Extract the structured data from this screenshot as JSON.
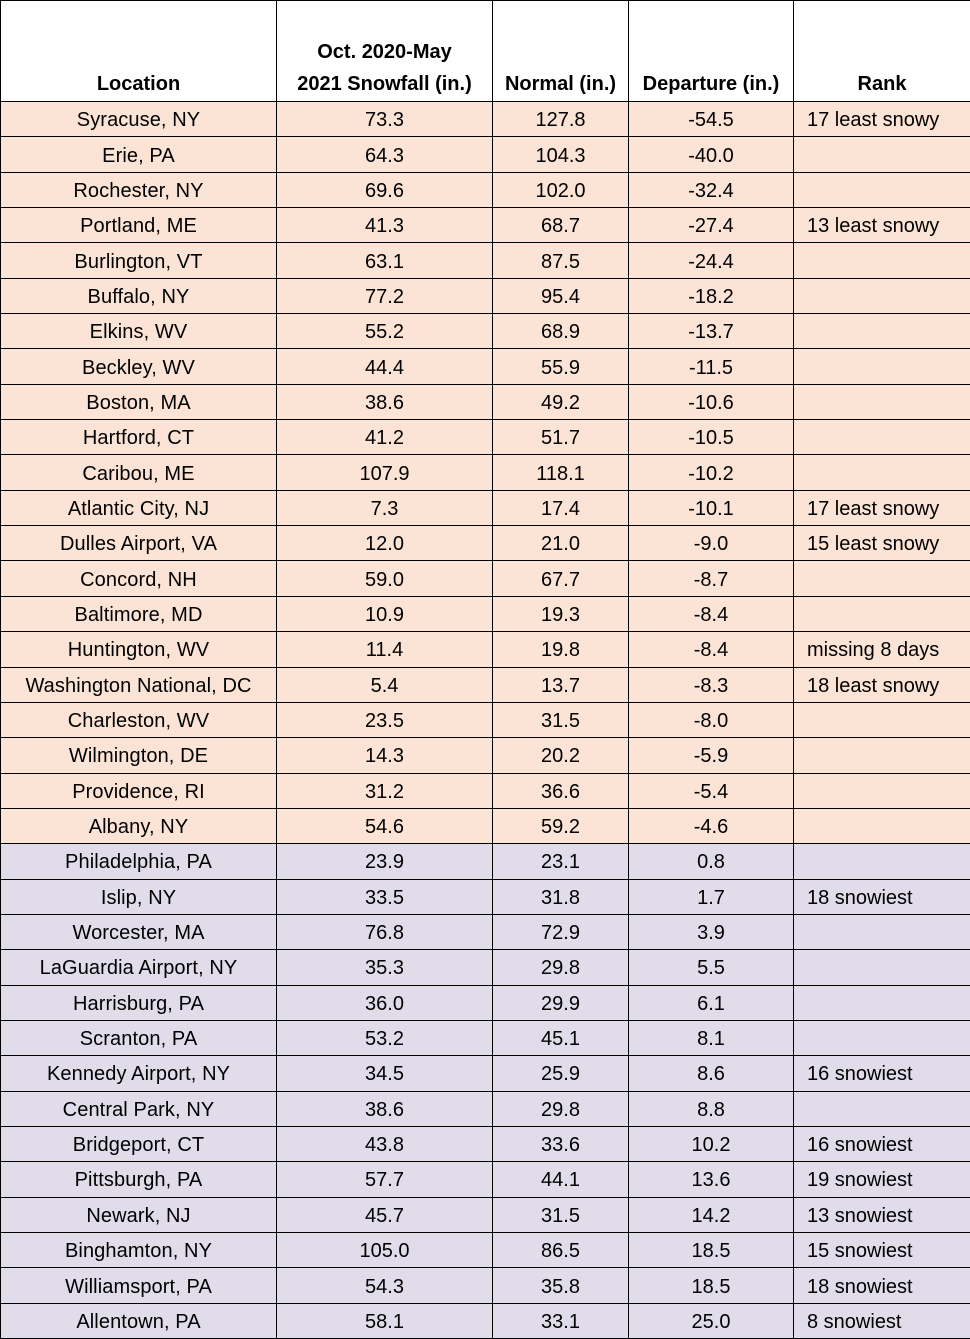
{
  "table": {
    "headers": {
      "location": "Location",
      "snowfall_line1": "Oct. 2020-May",
      "snowfall_line2": "2021 Snowfall (in.)",
      "normal": "Normal (in.)",
      "departure": "Departure (in.)",
      "rank": "Rank"
    },
    "row_colors": {
      "below_normal": "#fbe4d5",
      "above_normal": "#e0dcea"
    },
    "rows": [
      {
        "location": "Syracuse, NY",
        "snowfall": "73.3",
        "normal": "127.8",
        "departure": "-54.5",
        "rank": "17 least snowy",
        "group": "below_normal"
      },
      {
        "location": "Erie, PA",
        "snowfall": "64.3",
        "normal": "104.3",
        "departure": "-40.0",
        "rank": "",
        "group": "below_normal"
      },
      {
        "location": "Rochester, NY",
        "snowfall": "69.6",
        "normal": "102.0",
        "departure": "-32.4",
        "rank": "",
        "group": "below_normal"
      },
      {
        "location": "Portland, ME",
        "snowfall": "41.3",
        "normal": "68.7",
        "departure": "-27.4",
        "rank": "13 least snowy",
        "group": "below_normal"
      },
      {
        "location": "Burlington, VT",
        "snowfall": "63.1",
        "normal": "87.5",
        "departure": "-24.4",
        "rank": "",
        "group": "below_normal"
      },
      {
        "location": "Buffalo, NY",
        "snowfall": "77.2",
        "normal": "95.4",
        "departure": "-18.2",
        "rank": "",
        "group": "below_normal"
      },
      {
        "location": "Elkins, WV",
        "snowfall": "55.2",
        "normal": "68.9",
        "departure": "-13.7",
        "rank": "",
        "group": "below_normal"
      },
      {
        "location": "Beckley, WV",
        "snowfall": "44.4",
        "normal": "55.9",
        "departure": "-11.5",
        "rank": "",
        "group": "below_normal"
      },
      {
        "location": "Boston, MA",
        "snowfall": "38.6",
        "normal": "49.2",
        "departure": "-10.6",
        "rank": "",
        "group": "below_normal"
      },
      {
        "location": "Hartford, CT",
        "snowfall": "41.2",
        "normal": "51.7",
        "departure": "-10.5",
        "rank": "",
        "group": "below_normal"
      },
      {
        "location": "Caribou, ME",
        "snowfall": "107.9",
        "normal": "118.1",
        "departure": "-10.2",
        "rank": "",
        "group": "below_normal"
      },
      {
        "location": "Atlantic City, NJ",
        "snowfall": "7.3",
        "normal": "17.4",
        "departure": "-10.1",
        "rank": "17 least snowy",
        "group": "below_normal"
      },
      {
        "location": "Dulles Airport, VA",
        "snowfall": "12.0",
        "normal": "21.0",
        "departure": "-9.0",
        "rank": "15 least snowy",
        "group": "below_normal"
      },
      {
        "location": "Concord, NH",
        "snowfall": "59.0",
        "normal": "67.7",
        "departure": "-8.7",
        "rank": "",
        "group": "below_normal"
      },
      {
        "location": "Baltimore, MD",
        "snowfall": "10.9",
        "normal": "19.3",
        "departure": "-8.4",
        "rank": "",
        "group": "below_normal"
      },
      {
        "location": "Huntington, WV",
        "snowfall": "11.4",
        "normal": "19.8",
        "departure": "-8.4",
        "rank": "missing 8 days",
        "group": "below_normal"
      },
      {
        "location": "Washington National, DC",
        "snowfall": "5.4",
        "normal": "13.7",
        "departure": "-8.3",
        "rank": "18 least snowy",
        "group": "below_normal"
      },
      {
        "location": "Charleston, WV",
        "snowfall": "23.5",
        "normal": "31.5",
        "departure": "-8.0",
        "rank": "",
        "group": "below_normal"
      },
      {
        "location": "Wilmington, DE",
        "snowfall": "14.3",
        "normal": "20.2",
        "departure": "-5.9",
        "rank": "",
        "group": "below_normal"
      },
      {
        "location": "Providence, RI",
        "snowfall": "31.2",
        "normal": "36.6",
        "departure": "-5.4",
        "rank": "",
        "group": "below_normal"
      },
      {
        "location": "Albany, NY",
        "snowfall": "54.6",
        "normal": "59.2",
        "departure": "-4.6",
        "rank": "",
        "group": "below_normal"
      },
      {
        "location": "Philadelphia, PA",
        "snowfall": "23.9",
        "normal": "23.1",
        "departure": "0.8",
        "rank": "",
        "group": "above_normal"
      },
      {
        "location": "Islip, NY",
        "snowfall": "33.5",
        "normal": "31.8",
        "departure": "1.7",
        "rank": "18 snowiest",
        "group": "above_normal"
      },
      {
        "location": "Worcester, MA",
        "snowfall": "76.8",
        "normal": "72.9",
        "departure": "3.9",
        "rank": "",
        "group": "above_normal"
      },
      {
        "location": "LaGuardia Airport, NY",
        "snowfall": "35.3",
        "normal": "29.8",
        "departure": "5.5",
        "rank": "",
        "group": "above_normal"
      },
      {
        "location": "Harrisburg, PA",
        "snowfall": "36.0",
        "normal": "29.9",
        "departure": "6.1",
        "rank": "",
        "group": "above_normal"
      },
      {
        "location": "Scranton, PA",
        "snowfall": "53.2",
        "normal": "45.1",
        "departure": "8.1",
        "rank": "",
        "group": "above_normal"
      },
      {
        "location": "Kennedy Airport, NY",
        "snowfall": "34.5",
        "normal": "25.9",
        "departure": "8.6",
        "rank": "16 snowiest",
        "group": "above_normal"
      },
      {
        "location": "Central Park, NY",
        "snowfall": "38.6",
        "normal": "29.8",
        "departure": "8.8",
        "rank": "",
        "group": "above_normal"
      },
      {
        "location": "Bridgeport, CT",
        "snowfall": "43.8",
        "normal": "33.6",
        "departure": "10.2",
        "rank": "16 snowiest",
        "group": "above_normal"
      },
      {
        "location": "Pittsburgh, PA",
        "snowfall": "57.7",
        "normal": "44.1",
        "departure": "13.6",
        "rank": "19 snowiest",
        "group": "above_normal"
      },
      {
        "location": "Newark, NJ",
        "snowfall": "45.7",
        "normal": "31.5",
        "departure": "14.2",
        "rank": "13 snowiest",
        "group": "above_normal"
      },
      {
        "location": "Binghamton, NY",
        "snowfall": "105.0",
        "normal": "86.5",
        "departure": "18.5",
        "rank": "15 snowiest",
        "group": "above_normal"
      },
      {
        "location": "Williamsport, PA",
        "snowfall": "54.3",
        "normal": "35.8",
        "departure": "18.5",
        "rank": "18 snowiest",
        "group": "above_normal"
      },
      {
        "location": "Allentown, PA",
        "snowfall": "58.1",
        "normal": "33.1",
        "departure": "25.0",
        "rank": "8 snowiest",
        "group": "above_normal"
      }
    ]
  }
}
